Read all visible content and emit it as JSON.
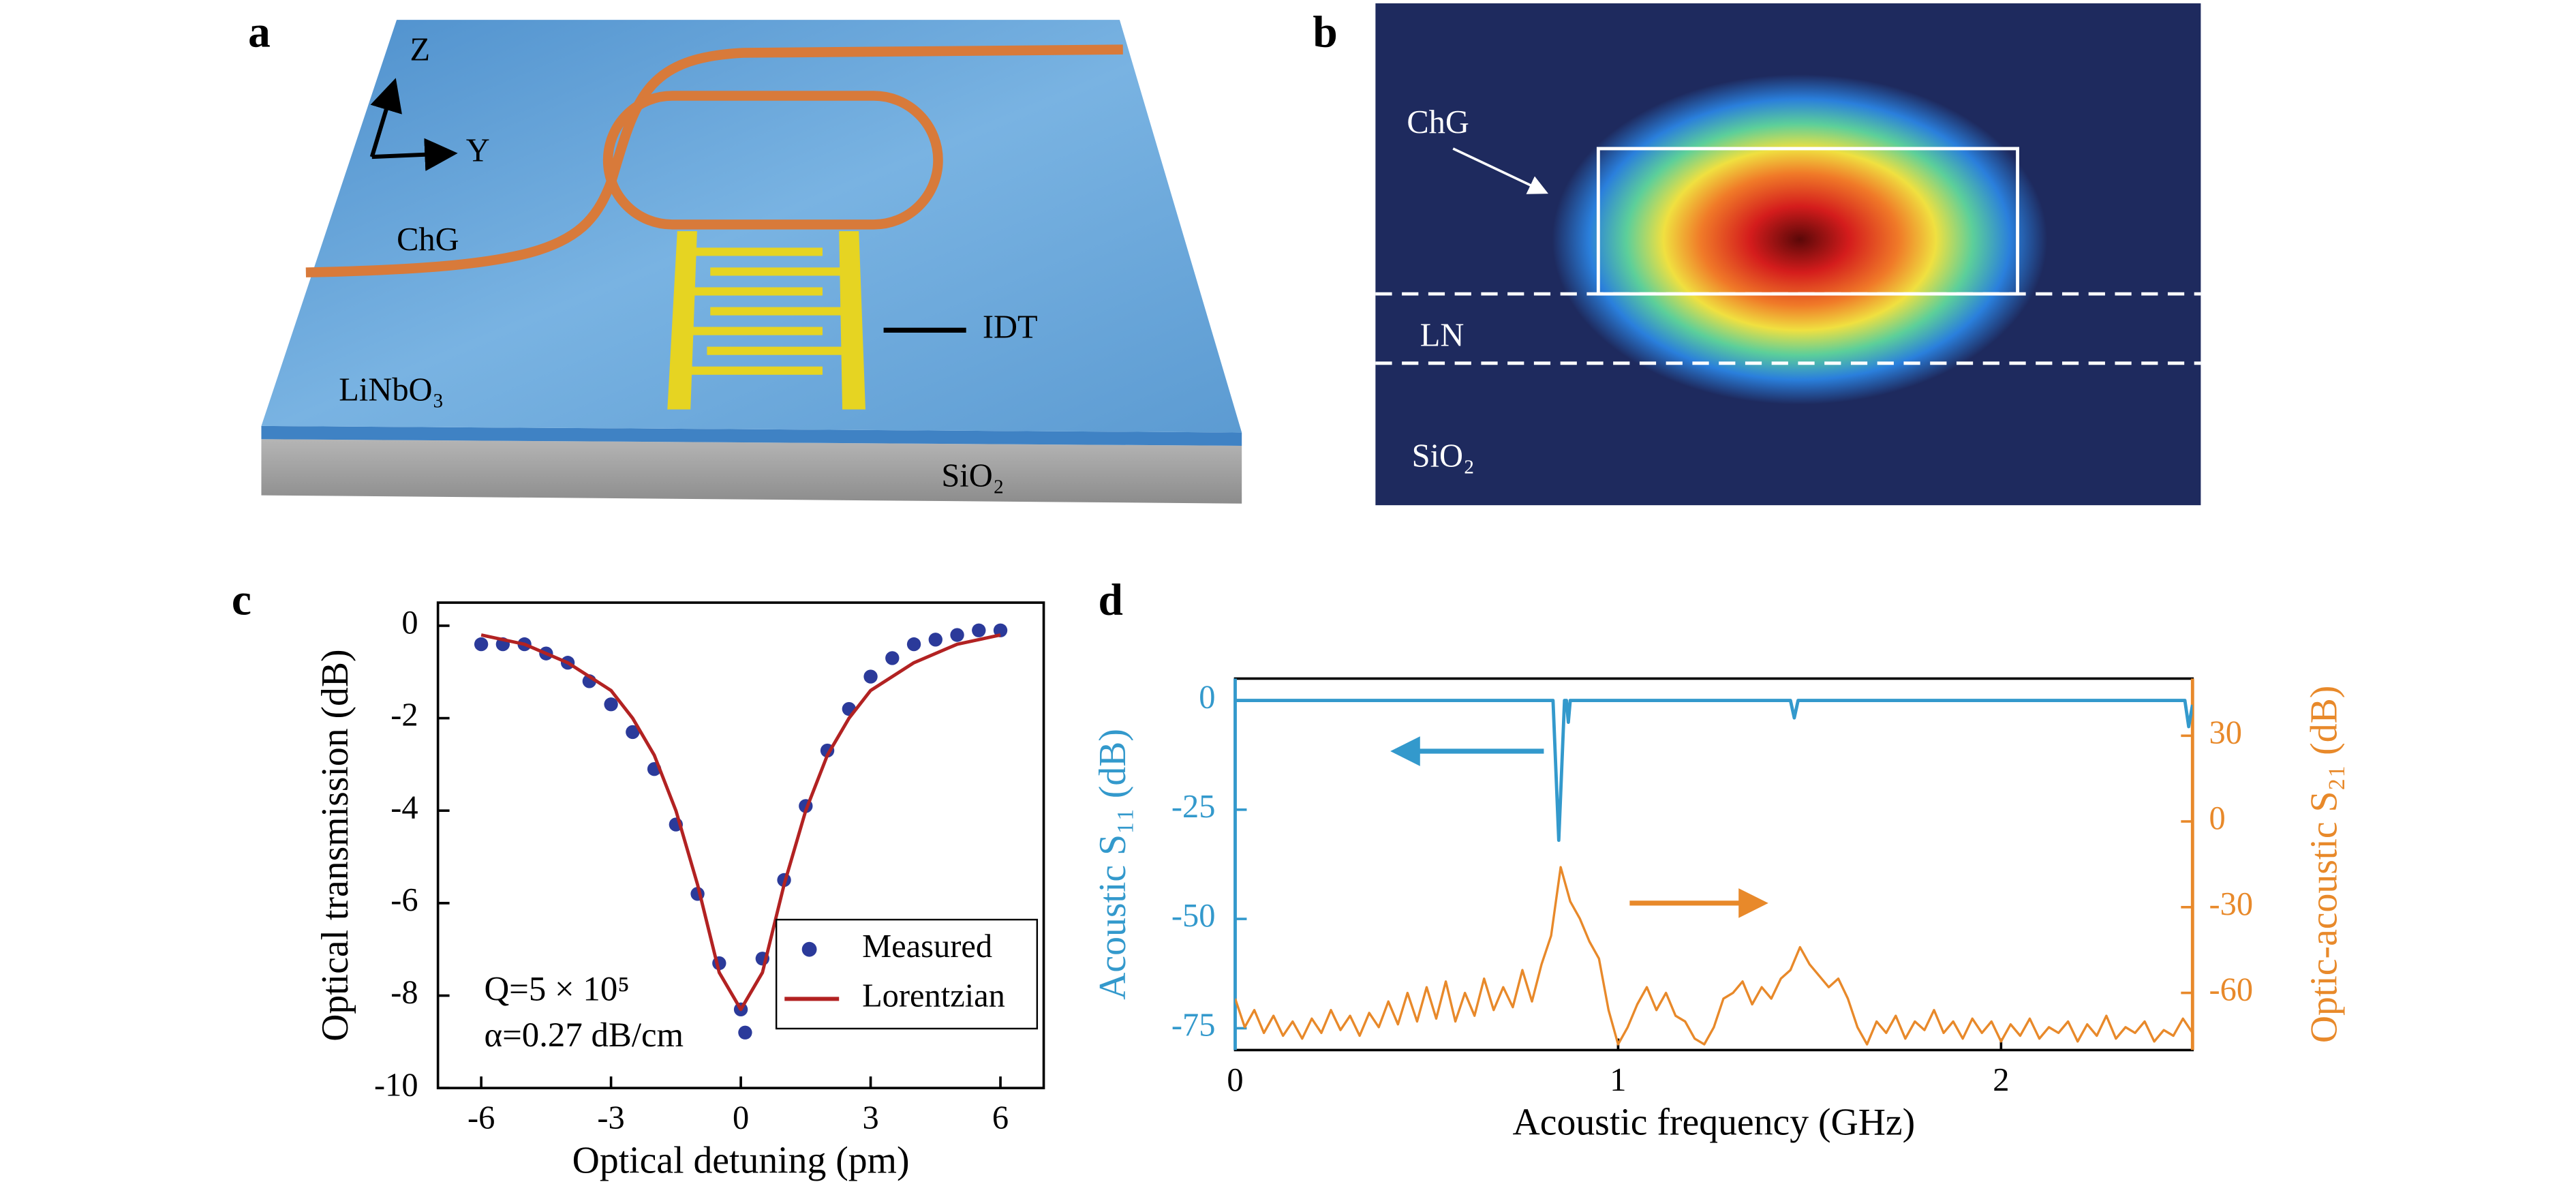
{
  "panel_labels": [
    "a",
    "b",
    "c",
    "d"
  ],
  "figure_a": {
    "z": "Z",
    "y": "Y",
    "chg": "ChG",
    "idt": "IDT",
    "substrate": "LiNbO₃",
    "cladding": "SiO₂"
  },
  "figure_b": {
    "chg": "ChG",
    "ln": "LN",
    "cladding": "SiO₂"
  },
  "chart_data": [
    {
      "type": "line",
      "xlabel": "Optical detuning (pm)",
      "ylabel": "Optical transmission (dB)",
      "xlim": [
        -7,
        7
      ],
      "xticks": [
        -6,
        -3,
        0,
        3,
        6
      ],
      "ylim": [
        -10,
        0.5
      ],
      "yticks": [
        -10,
        -8,
        -6,
        -4,
        -2,
        0
      ],
      "legend": "lower right",
      "annotations": [
        "Q=5 × 10⁵",
        "α=0.27 dB/cm"
      ],
      "series": [
        {
          "name": "Measured",
          "color": "#2b3a9a",
          "mode": "markers",
          "x": [
            -6,
            -5.5,
            -5,
            -4.5,
            -4,
            -3.5,
            -3,
            -2.5,
            -2,
            -1.5,
            -1,
            -0.5,
            0,
            0.1,
            0.5,
            1,
            1.5,
            2,
            2.5,
            3,
            3.5,
            4,
            4.5,
            5,
            5.5,
            6
          ],
          "values": [
            -0.4,
            -0.4,
            -0.4,
            -0.6,
            -0.8,
            -1.2,
            -1.7,
            -2.3,
            -3.1,
            -4.3,
            -5.8,
            -7.3,
            -8.3,
            -8.8,
            -7.2,
            -5.5,
            -3.9,
            -2.7,
            -1.8,
            -1.1,
            -0.7,
            -0.4,
            -0.3,
            -0.2,
            -0.1,
            -0.1
          ]
        },
        {
          "name": "Lorentzian",
          "color": "#b22222",
          "mode": "lines",
          "x": [
            -6,
            -5,
            -4,
            -3,
            -2.5,
            -2,
            -1.5,
            -1,
            -0.5,
            0,
            0.5,
            1,
            1.5,
            2,
            2.5,
            3,
            4,
            5,
            6
          ],
          "values": [
            -0.2,
            -0.4,
            -0.8,
            -1.4,
            -2.0,
            -2.8,
            -4.0,
            -5.6,
            -7.5,
            -8.3,
            -7.5,
            -5.6,
            -4.0,
            -2.8,
            -2.0,
            -1.4,
            -0.8,
            -0.4,
            -0.2
          ]
        }
      ]
    },
    {
      "type": "line",
      "xlabel": "Acoustic frequency (GHz)",
      "ylabel": "Acoustic S₁₁ (dB)",
      "y2label": "Optic-acoustic S₂₁ (dB)",
      "xlim": [
        0,
        2.5
      ],
      "xticks": [
        0,
        1,
        2
      ],
      "ylim": [
        -80,
        5
      ],
      "yticks": [
        -75,
        -50,
        -25,
        0
      ],
      "y2lim": [
        -80,
        50
      ],
      "y2ticks": [
        -60,
        -30,
        0,
        30
      ],
      "series": [
        {
          "color": "#3399cc",
          "mode": "lines",
          "x": [
            0,
            0.83,
            0.845,
            0.86,
            0.865,
            0.87,
            0.875,
            0.89,
            1.45,
            1.46,
            1.47,
            2.48,
            2.49,
            2.5
          ],
          "values": [
            0,
            0,
            -32,
            0,
            0,
            -5,
            0,
            0,
            0,
            -4,
            0,
            0,
            -6,
            -1
          ]
        },
        {
          "color": "#e8892a",
          "mode": "lines",
          "axis": "y2",
          "x": [
            0,
            0.025,
            0.05,
            0.075,
            0.1,
            0.125,
            0.15,
            0.175,
            0.2,
            0.225,
            0.25,
            0.275,
            0.3,
            0.325,
            0.35,
            0.375,
            0.4,
            0.425,
            0.45,
            0.475,
            0.5,
            0.525,
            0.55,
            0.575,
            0.6,
            0.625,
            0.65,
            0.675,
            0.7,
            0.725,
            0.75,
            0.775,
            0.8,
            0.825,
            0.85,
            0.875,
            0.9,
            0.925,
            0.95,
            0.975,
            1,
            1.025,
            1.05,
            1.075,
            1.1,
            1.125,
            1.15,
            1.175,
            1.2,
            1.225,
            1.25,
            1.275,
            1.3,
            1.325,
            1.35,
            1.375,
            1.4,
            1.425,
            1.45,
            1.475,
            1.5,
            1.525,
            1.55,
            1.575,
            1.6,
            1.625,
            1.65,
            1.675,
            1.7,
            1.725,
            1.75,
            1.775,
            1.8,
            1.825,
            1.85,
            1.875,
            1.9,
            1.925,
            1.95,
            1.975,
            2,
            2.025,
            2.05,
            2.075,
            2.1,
            2.125,
            2.15,
            2.175,
            2.2,
            2.225,
            2.25,
            2.275,
            2.3,
            2.325,
            2.35,
            2.375,
            2.4,
            2.425,
            2.45,
            2.475,
            2.5
          ],
          "values": [
            -62,
            -72,
            -66,
            -74,
            -68,
            -75,
            -70,
            -76,
            -69,
            -74,
            -66,
            -73,
            -68,
            -75,
            -67,
            -72,
            -63,
            -71,
            -60,
            -70,
            -58,
            -69,
            -56,
            -70,
            -60,
            -68,
            -55,
            -66,
            -58,
            -65,
            -52,
            -63,
            -50,
            -40,
            -16,
            -28,
            -34,
            -42,
            -48,
            -66,
            -78,
            -72,
            -64,
            -58,
            -66,
            -60,
            -68,
            -70,
            -76,
            -78,
            -72,
            -62,
            -60,
            -56,
            -64,
            -58,
            -62,
            -55,
            -52,
            -44,
            -50,
            -54,
            -58,
            -55,
            -62,
            -72,
            -78,
            -70,
            -74,
            -68,
            -76,
            -70,
            -73,
            -66,
            -74,
            -70,
            -76,
            -69,
            -74,
            -70,
            -77,
            -71,
            -75,
            -69,
            -76,
            -72,
            -74,
            -70,
            -77,
            -71,
            -75,
            -68,
            -76,
            -72,
            -74,
            -70,
            -77,
            -73,
            -75,
            -69,
            -74
          ]
        }
      ]
    }
  ]
}
